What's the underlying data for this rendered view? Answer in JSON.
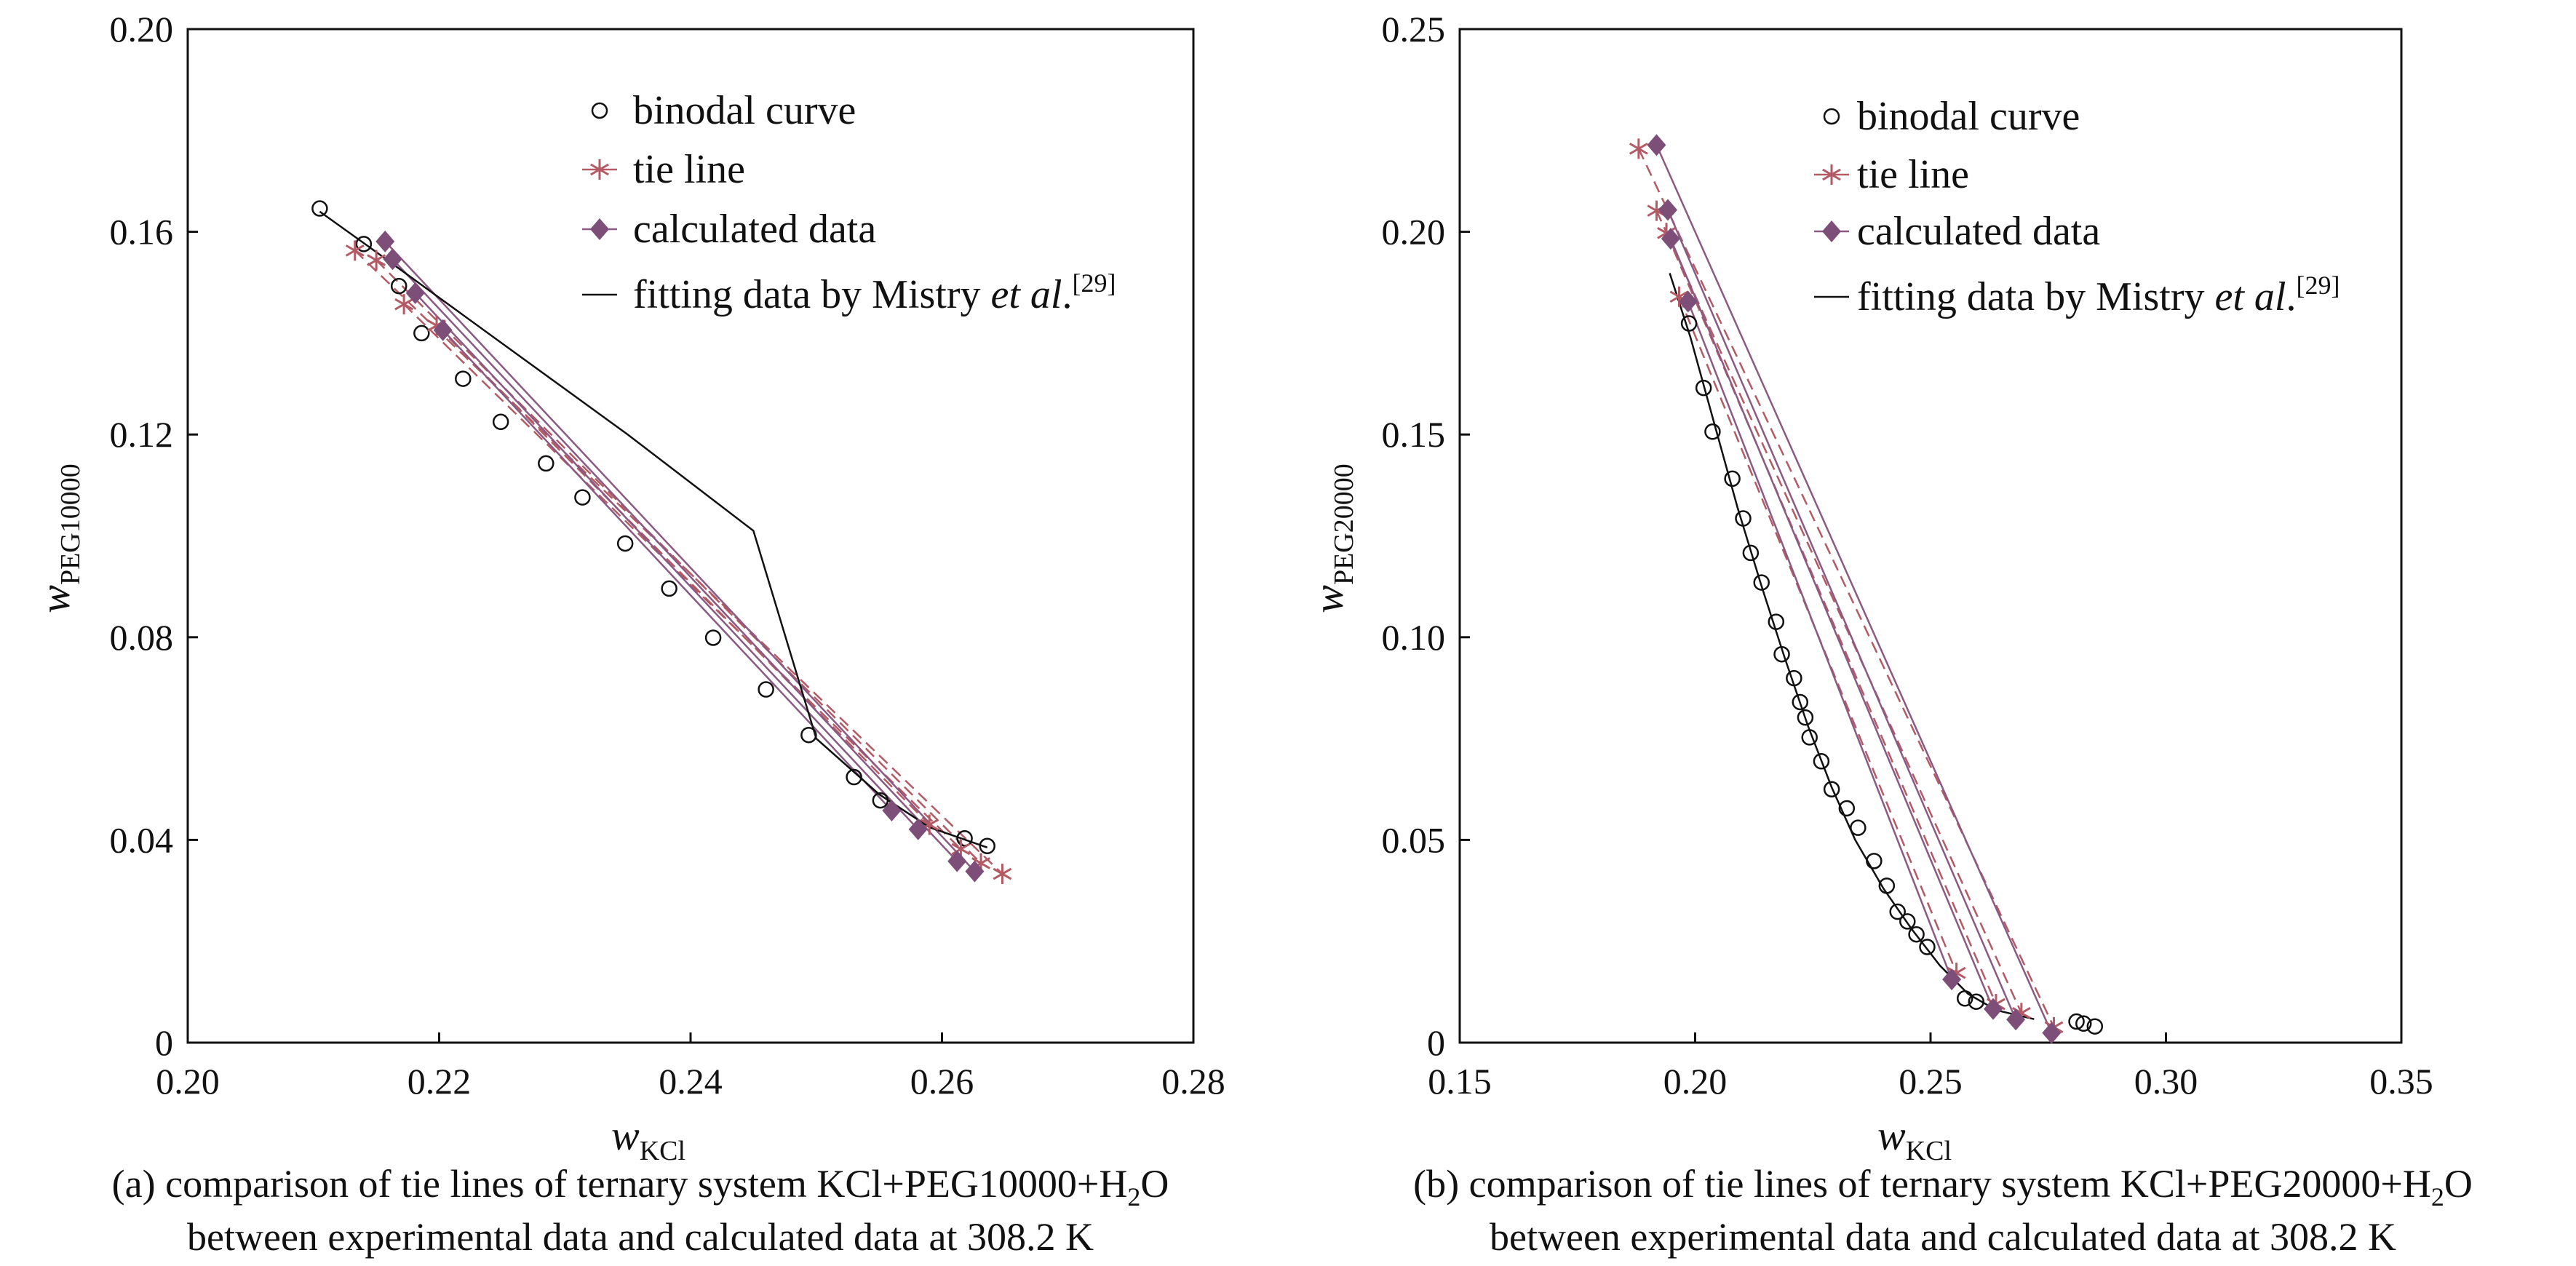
{
  "colors": {
    "binodal": "#111111",
    "tie": "#b35a64",
    "calc": "#7d4f78",
    "calc_line": "#8a5a84",
    "fit": "#111111"
  },
  "chart_data": [
    {
      "type": "scatter",
      "id": "a",
      "caption": [
        "(a) comparison of tie lines of ternary system KCl+PEG10000+H",
        "2",
        "O",
        "between experimental data and calculated data at 308.2 K"
      ],
      "xlabel": {
        "main": "w",
        "sub": "KCl"
      },
      "ylabel": {
        "main": "w",
        "sub": "PEG10000"
      },
      "xlim": [
        0.2,
        0.28
      ],
      "ylim": [
        0,
        0.2
      ],
      "xticks": [
        "0.20",
        "0.22",
        "0.24",
        "0.26",
        "0.28"
      ],
      "xtick_values": [
        0.2,
        0.22,
        0.24,
        0.26,
        0.28
      ],
      "yticks": [
        "0",
        "0.04",
        "0.08",
        "0.12",
        "0.16",
        "0.20"
      ],
      "ytick_values": [
        0,
        0.04,
        0.08,
        0.12,
        0.16,
        0.2
      ],
      "legend": {
        "placement": "top-right",
        "binodal": "binodal curve",
        "tie": "tie line",
        "calc": "calculated data",
        "fit": "fitting data by Mistry ",
        "fit_italic": "et al",
        "fit_dot": ".",
        "fit_ref": "[29]"
      },
      "binodal": [
        [
          0.2105,
          0.1646
        ],
        [
          0.214,
          0.1576
        ],
        [
          0.2168,
          0.1493
        ],
        [
          0.2186,
          0.14
        ],
        [
          0.2219,
          0.131
        ],
        [
          0.2249,
          0.1225
        ],
        [
          0.2285,
          0.1143
        ],
        [
          0.2314,
          0.1076
        ],
        [
          0.2348,
          0.0985
        ],
        [
          0.2383,
          0.0896
        ],
        [
          0.2418,
          0.0799
        ],
        [
          0.246,
          0.0697
        ],
        [
          0.2494,
          0.0607
        ],
        [
          0.253,
          0.0524
        ],
        [
          0.2551,
          0.0478
        ],
        [
          0.2618,
          0.0403
        ],
        [
          0.2636,
          0.0388
        ]
      ],
      "fit": [
        [
          0.2105,
          0.164
        ],
        [
          0.215,
          0.156
        ],
        [
          0.22,
          0.147
        ],
        [
          0.225,
          0.138
        ],
        [
          0.23,
          0.129
        ],
        [
          0.235,
          0.12
        ],
        [
          0.24,
          0.1105
        ],
        [
          0.245,
          0.101
        ],
        [
          0.25,
          0.06
        ],
        [
          0.255,
          0.049
        ],
        [
          0.259,
          0.0425
        ],
        [
          0.2636,
          0.0385
        ]
      ],
      "tie_lines": [
        [
          [
            0.2133,
            0.1563
          ],
          [
            0.2648,
            0.0333
          ]
        ],
        [
          [
            0.215,
            0.1544
          ],
          [
            0.2631,
            0.0354
          ]
        ],
        [
          [
            0.2172,
            0.1457
          ],
          [
            0.2615,
            0.0382
          ]
        ],
        [
          [
            0.2198,
            0.1415
          ],
          [
            0.259,
            0.043
          ]
        ]
      ],
      "calc_lines": [
        [
          [
            0.2157,
            0.1581
          ],
          [
            0.2626,
            0.0338
          ]
        ],
        [
          [
            0.2163,
            0.1546
          ],
          [
            0.2612,
            0.0358
          ]
        ],
        [
          [
            0.2181,
            0.1479
          ],
          [
            0.2581,
            0.0421
          ]
        ],
        [
          [
            0.2203,
            0.1406
          ],
          [
            0.256,
            0.0458
          ]
        ]
      ]
    },
    {
      "type": "scatter",
      "id": "b",
      "caption": [
        "(b) comparison of tie lines of ternary system KCl+PEG20000+H",
        "2",
        "O",
        "between experimental data and calculated data at 308.2 K"
      ],
      "xlabel": {
        "main": "w",
        "sub": "KCl"
      },
      "ylabel": {
        "main": "w",
        "sub": "PEG20000"
      },
      "xlim": [
        0.15,
        0.35
      ],
      "ylim": [
        0,
        0.25
      ],
      "xticks": [
        "0.15",
        "0.20",
        "0.25",
        "0.30",
        "0.35"
      ],
      "xtick_values": [
        0.15,
        0.2,
        0.25,
        0.3,
        0.35
      ],
      "yticks": [
        "0",
        "0.05",
        "0.10",
        "0.15",
        "0.20",
        "0.25"
      ],
      "ytick_values": [
        0,
        0.05,
        0.1,
        0.15,
        0.2,
        0.25
      ],
      "legend": {
        "placement": "top-right",
        "binodal": "binodal curve",
        "tie": "tie line",
        "calc": "calculated data",
        "fit": "fitting data by Mistry ",
        "fit_italic": "et al",
        "fit_dot": ".",
        "fit_ref": "[29]"
      },
      "binodal": [
        [
          0.1987,
          0.1774
        ],
        [
          0.2018,
          0.1615
        ],
        [
          0.2037,
          0.1507
        ],
        [
          0.2079,
          0.1391
        ],
        [
          0.2102,
          0.1293
        ],
        [
          0.2118,
          0.1208
        ],
        [
          0.2141,
          0.1135
        ],
        [
          0.2172,
          0.1038
        ],
        [
          0.2184,
          0.0958
        ],
        [
          0.221,
          0.0899
        ],
        [
          0.2223,
          0.084
        ],
        [
          0.2234,
          0.0802
        ],
        [
          0.2243,
          0.0753
        ],
        [
          0.2268,
          0.0694
        ],
        [
          0.229,
          0.0625
        ],
        [
          0.2322,
          0.0578
        ],
        [
          0.2346,
          0.053
        ],
        [
          0.238,
          0.0448
        ],
        [
          0.2407,
          0.0387
        ],
        [
          0.243,
          0.0323
        ],
        [
          0.2451,
          0.0299
        ],
        [
          0.247,
          0.0267
        ],
        [
          0.2493,
          0.0236
        ],
        [
          0.2573,
          0.0109
        ],
        [
          0.2597,
          0.0101
        ],
        [
          0.281,
          0.0052
        ],
        [
          0.2825,
          0.0047
        ],
        [
          0.2849,
          0.004
        ]
      ],
      "fit": [
        [
          0.1946,
          0.1898
        ],
        [
          0.199,
          0.174
        ],
        [
          0.204,
          0.153
        ],
        [
          0.209,
          0.132
        ],
        [
          0.214,
          0.113
        ],
        [
          0.219,
          0.095
        ],
        [
          0.224,
          0.078
        ],
        [
          0.229,
          0.063
        ],
        [
          0.234,
          0.05
        ],
        [
          0.24,
          0.038
        ],
        [
          0.246,
          0.028
        ],
        [
          0.252,
          0.019
        ],
        [
          0.258,
          0.012
        ],
        [
          0.264,
          0.008
        ],
        [
          0.272,
          0.0058
        ]
      ],
      "tie_lines": [
        [
          [
            0.188,
            0.2205
          ],
          [
            0.2762,
            0.0038
          ]
        ],
        [
          [
            0.1918,
            0.2052
          ],
          [
            0.2693,
            0.0073
          ]
        ],
        [
          [
            0.1939,
            0.1997
          ],
          [
            0.2639,
            0.0095
          ]
        ],
        [
          [
            0.1966,
            0.184
          ],
          [
            0.2555,
            0.0172
          ]
        ]
      ],
      "calc_lines": [
        [
          [
            0.1918,
            0.2214
          ],
          [
            0.2757,
            0.0024
          ]
        ],
        [
          [
            0.1942,
            0.2054
          ],
          [
            0.2681,
            0.0057
          ]
        ],
        [
          [
            0.1948,
            0.1983
          ],
          [
            0.2633,
            0.0083
          ]
        ],
        [
          [
            0.1985,
            0.1828
          ],
          [
            0.2545,
            0.0156
          ]
        ]
      ]
    }
  ]
}
